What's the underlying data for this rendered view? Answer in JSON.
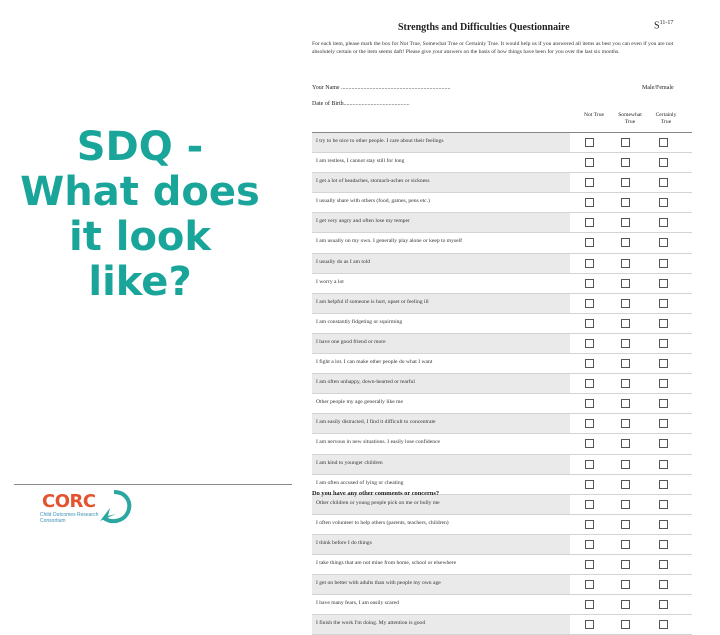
{
  "slide": {
    "title_lines": [
      "SDQ -",
      "What does",
      "it look",
      "like?"
    ]
  },
  "logo": {
    "text": "CORC",
    "subtext": "Child Outcomes Research Consortium"
  },
  "questionnaire": {
    "title": "Strengths and Difficulties Questionnaire",
    "code": "S",
    "code_sup": "11-17",
    "intro": "For each item, please mark the box for Not True, Somewhat True or Certainly True. It would help us if you answered all items as best you can even if you are not absolutely certain or the item seems daft! Please give your answers on the basis of how things have been for you over the last six months.",
    "name_label": "Your Name .........................................................................",
    "sex_label": "Male/Female",
    "dob_label": "Date of Birth............................................",
    "columns": [
      "Not True",
      "Somewhat True",
      "Certainly True"
    ],
    "items": [
      "I try to be nice to other people. I care about their feelings",
      "I am restless, I cannot stay still for long",
      "I get a lot of headaches, stomach-aches or sickness",
      "I usually share with others (food, games, pens etc.)",
      "I get very angry and often lose my temper",
      "I am usually on my own. I generally play alone or keep to myself",
      "I usually do as I am told",
      "I worry a lot",
      "I am helpful if someone is hurt, upset or feeling ill",
      "I am constantly fidgeting or squirming",
      "I have one good friend or more",
      "I fight a lot. I can make other people do what I want",
      "I am often unhappy, down-hearted or tearful",
      "Other people my age generally like me",
      "I am easily distracted, I find it difficult to concentrate",
      "I am nervous in new situations. I easily lose confidence",
      "I am kind to younger children",
      "I am often accused of lying or cheating",
      "Other children or young people pick on me or bully me",
      "I often volunteer to help others (parents, teachers, children)",
      "I think before I do things",
      "I take things that are not mine from home, school or elsewhere",
      "I get on better with adults than with people my own age",
      "I have many fears, I am easily scared",
      "I finish the work I'm doing. My attention is good"
    ],
    "footer_question": "Do you have any other comments or concerns?"
  }
}
